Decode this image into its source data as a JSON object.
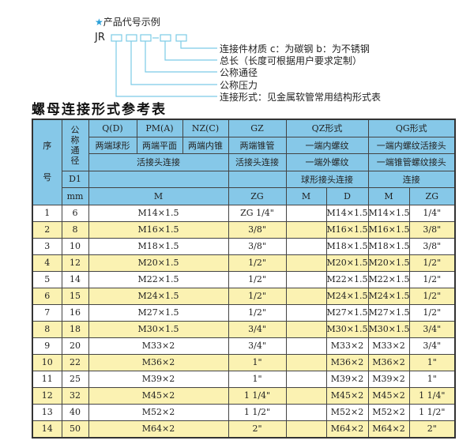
{
  "diagram": {
    "heading": "产品代号示例",
    "heading_icon": "star-icon",
    "code_prefix": "JR",
    "labels": [
      "连接件材质    c：为碳钢   b：为不锈钢",
      "总长（长度可根据用户要求定制）",
      "公称通径",
      "公称压力",
      "连接形式：见金属软管常用结构形式表"
    ],
    "accent": "#2a9fd8"
  },
  "table_title": "螺母连接形式参考表",
  "header": {
    "seq": "序号",
    "dn": "公称通径",
    "qd": "Q(D)",
    "pm": "PM(A)",
    "nz": "NZ(C)",
    "gz": "GZ",
    "qz": "QZ形式",
    "qg": "QG形式",
    "qd2": "两端球形",
    "pm2": "两端平面",
    "nz2": "两端内锥",
    "gz2": "两端锥管",
    "qz2": "一端内螺纹",
    "qg2": "一端内螺纹活接头",
    "hj": "活接头连接",
    "gz3": "活接头连接",
    "qz3": "一端外螺纹",
    "qg3": "一端锥管螺纹接头",
    "d1": "D1",
    "qz4": "球形接头连接",
    "qg4": "连接",
    "mm": "mm",
    "m": "M",
    "zg": "ZG",
    "qzm": "M",
    "qzd": "D",
    "qgm": "M",
    "qgzg": "ZG"
  },
  "header_color": "#86c8e8",
  "stripe_color": "#fbf2b2",
  "rows": [
    {
      "no": "1",
      "dn": "6",
      "m": "M14×1.5",
      "zg": "ZG 1/4\"",
      "qzm": "",
      "qzd": "M14×1.5",
      "qgm": "M14×1.5",
      "qgzg": "1/4\""
    },
    {
      "no": "2",
      "dn": "8",
      "m": "M16×1.5",
      "zg": "3/8\"",
      "qzm": "",
      "qzd": "M16×1.5",
      "qgm": "M16×1.5",
      "qgzg": "3/8\""
    },
    {
      "no": "3",
      "dn": "10",
      "m": "M18×1.5",
      "zg": "3/8\"",
      "qzm": "",
      "qzd": "M18×1.5",
      "qgm": "M18×1.5",
      "qgzg": "3/8\""
    },
    {
      "no": "4",
      "dn": "12",
      "m": "M20×1.5",
      "zg": "1/2\"",
      "qzm": "",
      "qzd": "M20×1.5",
      "qgm": "M20×1.5",
      "qgzg": "1/2\""
    },
    {
      "no": "5",
      "dn": "14",
      "m": "M22×1.5",
      "zg": "1/2\"",
      "qzm": "",
      "qzd": "M22×1.5",
      "qgm": "M22×1.5",
      "qgzg": "1/2\""
    },
    {
      "no": "6",
      "dn": "15",
      "m": "M24×1.5",
      "zg": "1/2\"",
      "qzm": "",
      "qzd": "M24×1.5",
      "qgm": "M24×1.5",
      "qgzg": "1/2\""
    },
    {
      "no": "7",
      "dn": "16",
      "m": "M27×1.5",
      "zg": "1/2\"",
      "qzm": "",
      "qzd": "M27×1.5",
      "qgm": "M27×1.5",
      "qgzg": "1/2\""
    },
    {
      "no": "8",
      "dn": "18",
      "m": "M30×1.5",
      "zg": "3/4\"",
      "qzm": "",
      "qzd": "M30×1.5",
      "qgm": "M30×1.5",
      "qgzg": "3/4\""
    },
    {
      "no": "9",
      "dn": "20",
      "m": "M33×2",
      "zg": "3/4\"",
      "qzm": "",
      "qzd": "M33×2",
      "qgm": "M33×2",
      "qgzg": "3/4\""
    },
    {
      "no": "10",
      "dn": "22",
      "m": "M36×2",
      "zg": "1\"",
      "qzm": "",
      "qzd": "M36×2",
      "qgm": "M36×2",
      "qgzg": "1\""
    },
    {
      "no": "11",
      "dn": "25",
      "m": "M39×2",
      "zg": "1\"",
      "qzm": "",
      "qzd": "M39×2",
      "qgm": "M39×2",
      "qgzg": "1\""
    },
    {
      "no": "12",
      "dn": "32",
      "m": "M45×2",
      "zg": "1 1/4\"",
      "qzm": "",
      "qzd": "M45×2",
      "qgm": "M45×2",
      "qgzg": "1 1/4\""
    },
    {
      "no": "13",
      "dn": "40",
      "m": "M52×2",
      "zg": "1 1/2\"",
      "qzm": "",
      "qzd": "M52×2",
      "qgm": "M52×2",
      "qgzg": "1 1/2\""
    },
    {
      "no": "14",
      "dn": "50",
      "m": "M64×2",
      "zg": "2\"",
      "qzm": "",
      "qzd": "M64×2",
      "qgm": "M64×2",
      "qgzg": "2\""
    }
  ]
}
